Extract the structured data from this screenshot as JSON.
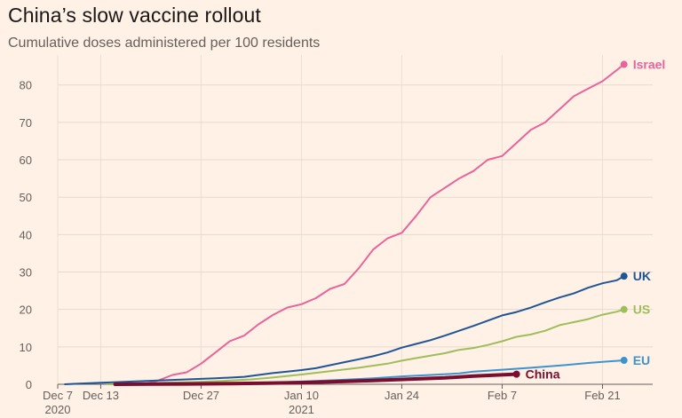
{
  "title": "China’s slow vaccine rollout",
  "subtitle": "Cumulative doses administered per 100 residents",
  "chart_data": {
    "type": "line",
    "x_unit": "date",
    "xlim": [
      "2020-12-07",
      "2021-02-28"
    ],
    "ylim": [
      0,
      88
    ],
    "yticks": [
      0,
      10,
      20,
      30,
      40,
      50,
      60,
      70,
      80
    ],
    "xticks": [
      {
        "date": "2020-12-07",
        "label": "Dec 7",
        "sublabel": "2020"
      },
      {
        "date": "2020-12-13",
        "label": "Dec 13",
        "sublabel": ""
      },
      {
        "date": "2020-12-27",
        "label": "Dec 27",
        "sublabel": ""
      },
      {
        "date": "2021-01-10",
        "label": "Jan 10",
        "sublabel": "2021"
      },
      {
        "date": "2021-01-24",
        "label": "Jan 24",
        "sublabel": ""
      },
      {
        "date": "2021-02-07",
        "label": "Feb 7",
        "sublabel": ""
      },
      {
        "date": "2021-02-21",
        "label": "Feb 21",
        "sublabel": ""
      }
    ],
    "grid": true,
    "series": [
      {
        "name": "Israel",
        "color": "#E8649A",
        "end_label": true,
        "points": [
          [
            "2020-12-19",
            0
          ],
          [
            "2020-12-21",
            1
          ],
          [
            "2020-12-23",
            2.5
          ],
          [
            "2020-12-25",
            3.2
          ],
          [
            "2020-12-27",
            5.5
          ],
          [
            "2020-12-29",
            8.5
          ],
          [
            "2020-12-31",
            11.5
          ],
          [
            "2021-01-02",
            13
          ],
          [
            "2021-01-04",
            16
          ],
          [
            "2021-01-06",
            18.5
          ],
          [
            "2021-01-08",
            20.5
          ],
          [
            "2021-01-10",
            21.4
          ],
          [
            "2021-01-12",
            23
          ],
          [
            "2021-01-14",
            25.5
          ],
          [
            "2021-01-16",
            26.8
          ],
          [
            "2021-01-18",
            31
          ],
          [
            "2021-01-20",
            36
          ],
          [
            "2021-01-22",
            39
          ],
          [
            "2021-01-24",
            40.5
          ],
          [
            "2021-01-26",
            45
          ],
          [
            "2021-01-28",
            50
          ],
          [
            "2021-01-30",
            52.5
          ],
          [
            "2021-02-01",
            55
          ],
          [
            "2021-02-03",
            57
          ],
          [
            "2021-02-05",
            60
          ],
          [
            "2021-02-07",
            61
          ],
          [
            "2021-02-09",
            64.5
          ],
          [
            "2021-02-11",
            68
          ],
          [
            "2021-02-13",
            70
          ],
          [
            "2021-02-15",
            73.5
          ],
          [
            "2021-02-17",
            77
          ],
          [
            "2021-02-19",
            79
          ],
          [
            "2021-02-21",
            81
          ],
          [
            "2021-02-23",
            84
          ],
          [
            "2021-02-24",
            85.5
          ]
        ]
      },
      {
        "name": "UK",
        "color": "#1F5597",
        "end_label": true,
        "points": [
          [
            "2020-12-08",
            0
          ],
          [
            "2020-12-10",
            0.2
          ],
          [
            "2020-12-13",
            0.4
          ],
          [
            "2020-12-17",
            0.7
          ],
          [
            "2020-12-21",
            1.0
          ],
          [
            "2020-12-25",
            1.3
          ],
          [
            "2020-12-29",
            1.6
          ],
          [
            "2021-01-02",
            2.0
          ],
          [
            "2021-01-06",
            3.0
          ],
          [
            "2021-01-08",
            3.4
          ],
          [
            "2021-01-10",
            3.8
          ],
          [
            "2021-01-12",
            4.3
          ],
          [
            "2021-01-14",
            5.1
          ],
          [
            "2021-01-16",
            5.9
          ],
          [
            "2021-01-18",
            6.7
          ],
          [
            "2021-01-20",
            7.5
          ],
          [
            "2021-01-22",
            8.5
          ],
          [
            "2021-01-24",
            9.8
          ],
          [
            "2021-01-26",
            10.8
          ],
          [
            "2021-01-28",
            11.8
          ],
          [
            "2021-01-30",
            13
          ],
          [
            "2021-02-01",
            14.3
          ],
          [
            "2021-02-03",
            15.6
          ],
          [
            "2021-02-05",
            17
          ],
          [
            "2021-02-07",
            18.4
          ],
          [
            "2021-02-09",
            19.3
          ],
          [
            "2021-02-11",
            20.5
          ],
          [
            "2021-02-13",
            21.9
          ],
          [
            "2021-02-15",
            23.2
          ],
          [
            "2021-02-17",
            24.3
          ],
          [
            "2021-02-19",
            25.8
          ],
          [
            "2021-02-21",
            27
          ],
          [
            "2021-02-23",
            27.8
          ],
          [
            "2021-02-24",
            28.9
          ]
        ]
      },
      {
        "name": "US",
        "color": "#9DBE58",
        "end_label": true,
        "points": [
          [
            "2020-12-14",
            0
          ],
          [
            "2020-12-18",
            0.2
          ],
          [
            "2020-12-22",
            0.4
          ],
          [
            "2020-12-26",
            0.6
          ],
          [
            "2020-12-30",
            0.9
          ],
          [
            "2021-01-03",
            1.3
          ],
          [
            "2021-01-06",
            1.8
          ],
          [
            "2021-01-10",
            2.6
          ],
          [
            "2021-01-14",
            3.5
          ],
          [
            "2021-01-18",
            4.4
          ],
          [
            "2021-01-22",
            5.5
          ],
          [
            "2021-01-24",
            6.3
          ],
          [
            "2021-01-26",
            7.0
          ],
          [
            "2021-01-30",
            8.3
          ],
          [
            "2021-02-01",
            9.2
          ],
          [
            "2021-02-03",
            9.7
          ],
          [
            "2021-02-05",
            10.5
          ],
          [
            "2021-02-07",
            11.5
          ],
          [
            "2021-02-09",
            12.7
          ],
          [
            "2021-02-11",
            13.3
          ],
          [
            "2021-02-13",
            14.3
          ],
          [
            "2021-02-15",
            15.8
          ],
          [
            "2021-02-17",
            16.6
          ],
          [
            "2021-02-19",
            17.4
          ],
          [
            "2021-02-21",
            18.6
          ],
          [
            "2021-02-23",
            19.4
          ],
          [
            "2021-02-24",
            20
          ]
        ]
      },
      {
        "name": "EU",
        "color": "#3C93CE",
        "end_label": true,
        "points": [
          [
            "2020-12-27",
            0
          ],
          [
            "2020-12-31",
            0.15
          ],
          [
            "2021-01-04",
            0.35
          ],
          [
            "2021-01-08",
            0.6
          ],
          [
            "2021-01-12",
            0.9
          ],
          [
            "2021-01-16",
            1.2
          ],
          [
            "2021-01-20",
            1.6
          ],
          [
            "2021-01-24",
            2.1
          ],
          [
            "2021-01-28",
            2.5
          ],
          [
            "2021-02-01",
            2.9
          ],
          [
            "2021-02-03",
            3.4
          ],
          [
            "2021-02-07",
            3.9
          ],
          [
            "2021-02-11",
            4.4
          ],
          [
            "2021-02-15",
            5.0
          ],
          [
            "2021-02-19",
            5.7
          ],
          [
            "2021-02-21",
            6.0
          ],
          [
            "2021-02-24",
            6.4
          ]
        ]
      },
      {
        "name": "China",
        "color": "#7A0E2E",
        "end_label": true,
        "thick": true,
        "points": [
          [
            "2020-12-15",
            0
          ],
          [
            "2020-12-20",
            0.05
          ],
          [
            "2020-12-25",
            0.1
          ],
          [
            "2020-12-31",
            0.2
          ],
          [
            "2021-01-05",
            0.3
          ],
          [
            "2021-01-10",
            0.45
          ],
          [
            "2021-01-15",
            0.7
          ],
          [
            "2021-01-20",
            1.0
          ],
          [
            "2021-01-25",
            1.35
          ],
          [
            "2021-01-30",
            1.7
          ],
          [
            "2021-02-03",
            2.2
          ],
          [
            "2021-02-09",
            2.7
          ]
        ]
      }
    ]
  }
}
